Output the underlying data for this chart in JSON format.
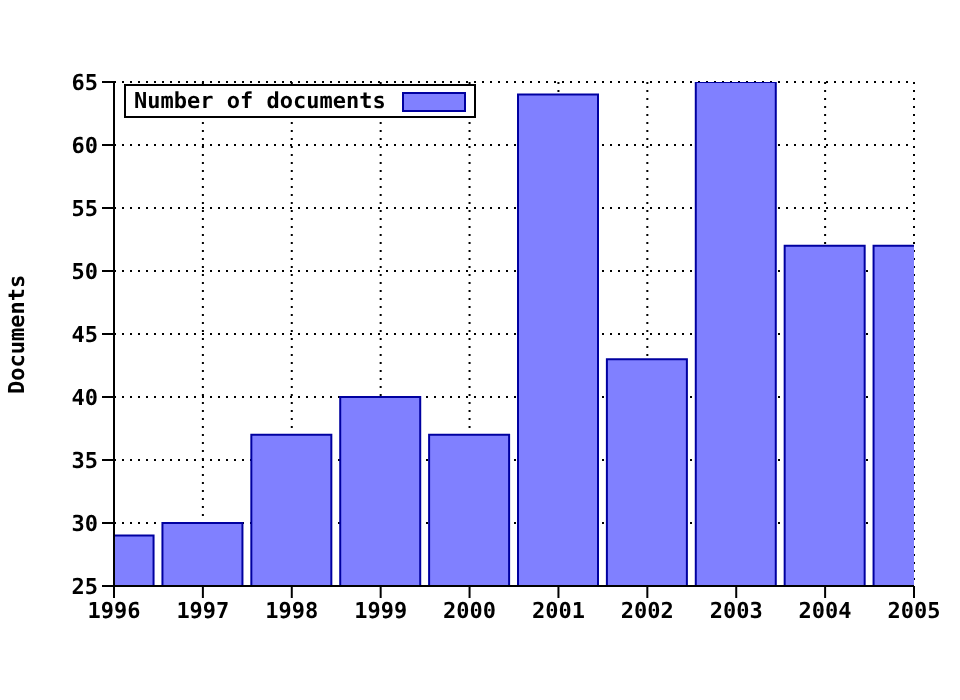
{
  "chart_data": {
    "type": "bar",
    "ylabel": "Documents",
    "x": [
      1996,
      1997,
      1998,
      1999,
      2000,
      2001,
      2002,
      2003,
      2004,
      2005
    ],
    "series": [
      {
        "name": "Number of documents",
        "color": "#8080ff",
        "values": [
          29,
          30,
          37,
          40,
          37,
          64,
          43,
          65,
          52,
          52
        ]
      }
    ],
    "xlim": [
      1996,
      2005
    ],
    "xticks": [
      1996,
      1997,
      1998,
      1999,
      2000,
      2001,
      2002,
      2003,
      2004,
      2005
    ],
    "ylim": [
      25,
      65
    ],
    "yticks": [
      25,
      30,
      35,
      40,
      45,
      50,
      55,
      60,
      65
    ],
    "grid": true,
    "legend": "top left"
  }
}
